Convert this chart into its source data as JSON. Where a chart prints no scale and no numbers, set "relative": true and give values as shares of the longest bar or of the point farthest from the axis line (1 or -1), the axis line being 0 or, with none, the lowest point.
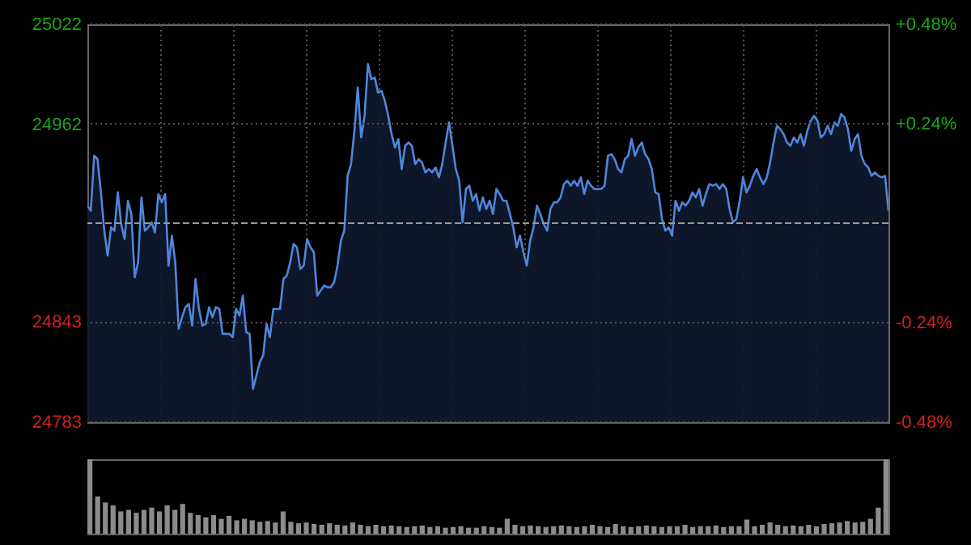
{
  "chart_data": [
    {
      "type": "area",
      "categories": [
        null,
        null,
        null,
        null,
        null,
        null,
        null,
        null,
        null,
        null,
        null,
        null,
        null,
        null,
        null,
        null,
        null,
        null,
        null,
        null,
        null,
        null,
        null,
        null,
        null,
        null,
        null,
        null,
        null,
        null,
        null,
        null,
        null,
        null,
        null,
        null,
        null,
        null,
        null,
        null,
        null,
        null,
        null,
        null,
        null,
        null,
        null,
        null,
        null,
        null,
        null,
        null,
        null,
        null,
        null,
        null,
        null,
        null,
        null,
        null,
        null,
        null,
        null,
        null,
        null,
        null,
        null,
        null,
        null,
        null,
        null,
        null,
        null,
        null,
        null,
        null,
        null,
        null,
        null,
        null,
        null,
        null,
        null,
        null,
        null,
        null,
        null,
        null,
        null,
        null,
        null,
        null,
        null,
        null,
        null,
        null,
        null,
        null,
        null,
        null,
        null,
        null,
        null,
        null,
        null,
        null,
        null,
        null,
        null,
        null,
        null,
        null,
        null,
        null,
        null,
        null,
        null,
        null,
        null,
        null,
        null,
        null,
        null,
        null,
        null,
        null,
        null,
        null,
        null,
        null,
        null,
        null,
        null,
        null,
        null,
        null,
        null,
        null,
        null,
        null,
        null,
        null,
        null,
        null,
        null,
        null,
        null,
        null,
        null,
        null,
        null,
        null,
        null,
        null,
        null,
        null,
        null,
        null,
        null,
        null,
        null,
        null,
        null,
        null,
        null,
        null,
        null,
        null,
        null,
        null,
        null,
        null,
        null,
        null,
        null,
        null,
        null,
        null,
        null,
        null,
        null,
        null,
        null,
        null,
        null,
        null,
        null,
        null,
        null,
        null,
        null,
        null,
        null,
        null,
        null,
        null,
        null,
        null,
        null,
        null,
        null,
        null,
        null,
        null,
        null,
        null,
        null,
        null,
        null,
        null,
        null,
        null,
        null,
        null,
        null,
        null,
        null,
        null,
        null,
        null,
        null,
        null,
        null,
        null,
        null,
        null,
        null,
        null,
        null,
        null,
        null,
        null,
        null,
        null,
        null,
        null,
        null,
        null
      ],
      "ylim": [
        24783,
        25022
      ],
      "yticks": [
        24783,
        24843,
        24962,
        25022
      ],
      "y2lim": [
        -0.48,
        0.48
      ],
      "y2ticks": [
        {
          "value": -0.48,
          "label": "-0.48%"
        },
        {
          "value": -0.24,
          "label": "-0.24%"
        },
        {
          "value": 0.24,
          "label": "+0.24%"
        },
        {
          "value": 0.48,
          "label": "+0.48%"
        }
      ],
      "grid": true,
      "ref_lines": [
        {
          "axis": "y",
          "value": 24902.5,
          "line_style": "dashed"
        }
      ],
      "series": [
        {
          "color": "#4f86dc",
          "values": [
            24913,
            24910,
            24943,
            24941,
            24921,
            24898,
            24883,
            24900,
            24898,
            24921,
            24902,
            24893,
            24916,
            24908,
            24870,
            24879,
            24918,
            24898,
            24900,
            24903,
            24897,
            24920,
            24915,
            24920,
            24877,
            24895,
            24879,
            24839,
            24846,
            24852,
            24854,
            24841,
            24869,
            24851,
            24841,
            24842,
            24852,
            24846,
            24852,
            24851,
            24836,
            24836,
            24836,
            24834,
            24851,
            24847,
            24859,
            24837,
            24836,
            24803,
            24811,
            24819,
            24823,
            24842,
            24834,
            24851,
            24851,
            24851,
            24869,
            24871,
            24879,
            24890,
            24888,
            24875,
            24877,
            24893,
            24888,
            24885,
            24859,
            24862,
            24865,
            24864,
            24864,
            24867,
            24877,
            24892,
            24898,
            24931,
            24938,
            24958,
            24984,
            24954,
            24967,
            24998,
            24989,
            24990,
            24981,
            24982,
            24976,
            24967,
            24956,
            24948,
            24953,
            24935,
            24949,
            24951,
            24949,
            24938,
            24941,
            24939,
            24933,
            24935,
            24933,
            24936,
            24930,
            24938,
            24951,
            24963,
            24949,
            24935,
            24928,
            24903,
            24923,
            24925,
            24916,
            24920,
            24910,
            24918,
            24911,
            24916,
            24908,
            24923,
            24920,
            24916,
            24916,
            24908,
            24900,
            24888,
            24895,
            24885,
            24877,
            24892,
            24900,
            24913,
            24908,
            24902,
            24898,
            24911,
            24915,
            24915,
            24918,
            24926,
            24928,
            24925,
            24928,
            24925,
            24930,
            24920,
            24928,
            24925,
            24923,
            24923,
            24923,
            24925,
            24943,
            24944,
            24941,
            24935,
            24933,
            24941,
            24943,
            24953,
            24943,
            24948,
            24951,
            24944,
            24941,
            24935,
            24921,
            24920,
            24905,
            24898,
            24900,
            24895,
            24916,
            24910,
            24915,
            24913,
            24916,
            24921,
            24918,
            24923,
            24913,
            24920,
            24926,
            24925,
            24926,
            24923,
            24926,
            24923,
            24911,
            24903,
            24905,
            24916,
            24930,
            24921,
            24925,
            24931,
            24935,
            24930,
            24926,
            24930,
            24939,
            24951,
            24961,
            24959,
            24956,
            24951,
            24949,
            24954,
            24951,
            24956,
            24949,
            24958,
            24964,
            24967,
            24964,
            24954,
            24956,
            24961,
            24956,
            24963,
            24961,
            24968,
            24966,
            24959,
            24946,
            24953,
            24956,
            24943,
            24938,
            24936,
            24931,
            24933,
            24931,
            24930,
            24931,
            24910
          ]
        }
      ]
    },
    {
      "type": "bar",
      "relative": true,
      "categories": [
        null,
        null,
        null,
        null,
        null,
        null,
        null,
        null,
        null,
        null,
        null,
        null,
        null,
        null,
        null,
        null,
        null,
        null,
        null,
        null,
        null,
        null,
        null,
        null,
        null,
        null,
        null,
        null,
        null,
        null,
        null,
        null,
        null,
        null,
        null,
        null,
        null,
        null,
        null,
        null,
        null,
        null,
        null,
        null,
        null,
        null,
        null,
        null,
        null,
        null,
        null,
        null,
        null,
        null,
        null,
        null,
        null,
        null,
        null,
        null,
        null,
        null,
        null,
        null,
        null,
        null,
        null,
        null,
        null,
        null,
        null,
        null,
        null,
        null,
        null,
        null,
        null,
        null,
        null,
        null,
        null,
        null,
        null,
        null,
        null,
        null,
        null,
        null,
        null,
        null,
        null,
        null,
        null,
        null,
        null,
        null,
        null,
        null,
        null,
        null,
        null,
        null,
        null,
        null
      ],
      "series": [
        {
          "color": "#8c8c8c",
          "values": [
            1,
            0.5,
            0.42,
            0.38,
            0.3,
            0.32,
            0.28,
            0.32,
            0.35,
            0.3,
            0.38,
            0.32,
            0.4,
            0.28,
            0.25,
            0.22,
            0.25,
            0.2,
            0.24,
            0.18,
            0.2,
            0.18,
            0.16,
            0.17,
            0.15,
            0.3,
            0.16,
            0.14,
            0.15,
            0.13,
            0.12,
            0.14,
            0.12,
            0.11,
            0.15,
            0.12,
            0.1,
            0.12,
            0.1,
            0.11,
            0.1,
            0.09,
            0.1,
            0.11,
            0.09,
            0.1,
            0.08,
            0.09,
            0.1,
            0.08,
            0.08,
            0.1,
            0.09,
            0.08,
            0.2,
            0.12,
            0.1,
            0.11,
            0.1,
            0.09,
            0.1,
            0.11,
            0.1,
            0.09,
            0.1,
            0.12,
            0.1,
            0.09,
            0.13,
            0.1,
            0.09,
            0.1,
            0.11,
            0.1,
            0.09,
            0.1,
            0.1,
            0.12,
            0.09,
            0.1,
            0.1,
            0.11,
            0.09,
            0.1,
            0.1,
            0.19,
            0.1,
            0.12,
            0.15,
            0.12,
            0.1,
            0.11,
            0.1,
            0.12,
            0.1,
            0.13,
            0.14,
            0.15,
            0.17,
            0.15,
            0.16,
            0.2,
            0.35,
            1
          ]
        }
      ]
    }
  ]
}
